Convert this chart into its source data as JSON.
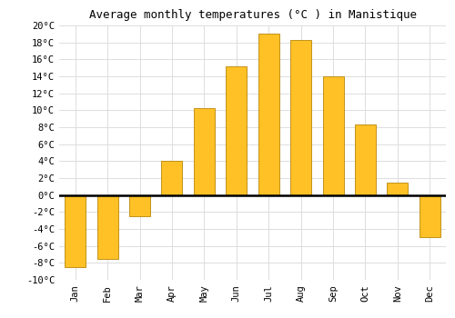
{
  "title": "Average monthly temperatures (°C ) in Manistique",
  "months": [
    "Jan",
    "Feb",
    "Mar",
    "Apr",
    "May",
    "Jun",
    "Jul",
    "Aug",
    "Sep",
    "Oct",
    "Nov",
    "Dec"
  ],
  "values": [
    -8.5,
    -7.5,
    -2.5,
    4.0,
    10.3,
    15.2,
    19.0,
    18.3,
    14.0,
    8.3,
    1.5,
    -5.0
  ],
  "bar_color": "#FFC125",
  "bar_edge_color": "#B8860B",
  "ylim": [
    -10,
    20
  ],
  "yticks": [
    -10,
    -8,
    -6,
    -4,
    -2,
    0,
    2,
    4,
    6,
    8,
    10,
    12,
    14,
    16,
    18,
    20
  ],
  "background_color": "#FFFFFF",
  "grid_color": "#DDDDDD",
  "title_fontsize": 9,
  "tick_fontsize": 7.5,
  "font_family": "monospace"
}
